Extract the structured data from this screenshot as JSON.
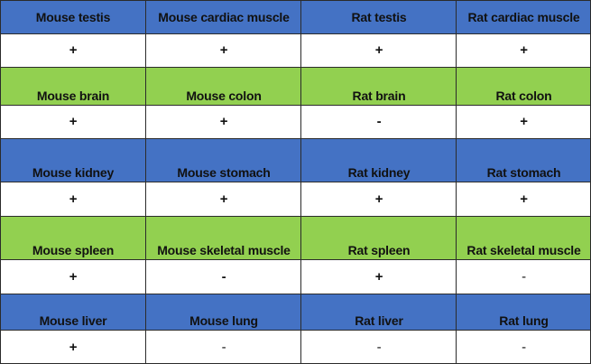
{
  "colors": {
    "blue": "#4472c4",
    "green": "#92d050",
    "white": "#ffffff",
    "line": "#2b2b2b"
  },
  "rows": [
    {
      "fill": "blue",
      "headers": [
        "Mouse testis",
        "Mouse cardiac muscle",
        "Rat testis",
        "Rat cardiac muscle"
      ],
      "values": [
        "+",
        "+",
        "+",
        "+"
      ]
    },
    {
      "fill": "green",
      "headers": [
        "Mouse brain",
        "Mouse colon",
        "Rat brain",
        "Rat colon"
      ],
      "values": [
        "+",
        "+",
        "-",
        "+"
      ]
    },
    {
      "fill": "blue",
      "headers": [
        "Mouse kidney",
        "Mouse stomach",
        "Rat kidney",
        "Rat stomach"
      ],
      "values": [
        "+",
        "+",
        "+",
        "+"
      ]
    },
    {
      "fill": "green",
      "headers": [
        "Mouse spleen",
        "Mouse skeletal muscle",
        "Rat spleen",
        "Rat skeletal muscle"
      ],
      "values": [
        "+",
        "-",
        "+",
        "-"
      ]
    },
    {
      "fill": "blue",
      "headers": [
        "Mouse liver",
        "Mouse lung",
        "Rat liver",
        "Rat lung"
      ],
      "values": [
        "+",
        "-",
        "-",
        "-"
      ]
    }
  ]
}
